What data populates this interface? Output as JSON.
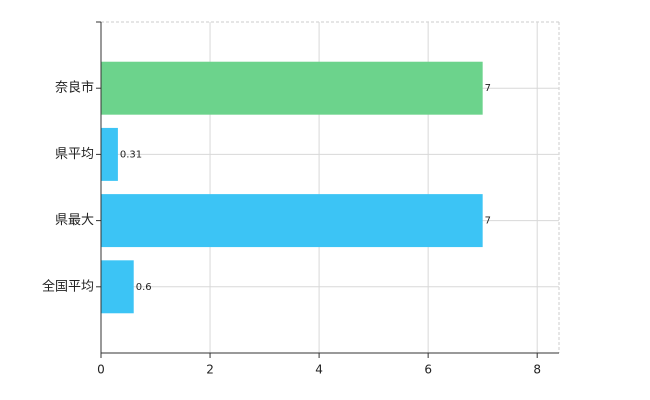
{
  "chart_data": {
    "type": "bar",
    "orientation": "horizontal",
    "categories": [
      "奈良市",
      "県平均",
      "県最大",
      "全国平均"
    ],
    "values": [
      7,
      0.31,
      7,
      0.6
    ],
    "colors": [
      "#6cd38c",
      "#3cc4f5",
      "#3cc4f5",
      "#3cc4f5"
    ],
    "xlim": [
      0,
      8.4
    ],
    "xticks": [
      0,
      2,
      4,
      6,
      8
    ],
    "grid": true
  }
}
